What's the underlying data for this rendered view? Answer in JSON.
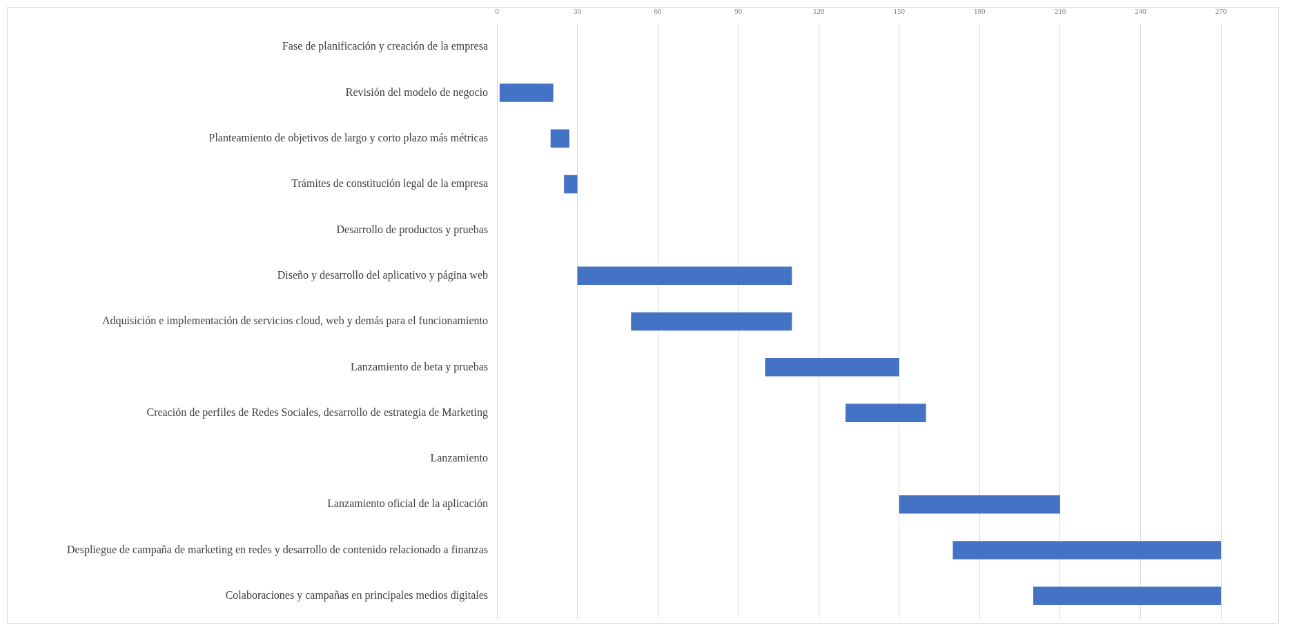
{
  "chart_data": {
    "type": "bar",
    "orientation": "horizontal",
    "categories": [
      "Fase de planificación y creación de la empresa",
      "Revisión del modelo de negocio",
      "Planteamiento de objetivos de largo y corto plazo más métricas",
      "Trámites de constitución legal de la empresa",
      "Desarrollo de productos y pruebas",
      "Diseño y desarrollo del aplicativo y página web",
      "Adquisición e implementación de servicios cloud, web y demás para el funcionamiento",
      "Lanzamiento de beta y pruebas",
      "Creación de perfiles de Redes Sociales, desarrollo de estrategia de Marketing",
      "Lanzamiento",
      "Lanzamiento oficial de la aplicación",
      "Despliegue de campaña de marketing en redes y desarrollo de contenido relacionado a finanzas",
      "Colaboraciones y campañas en principales medios digitales"
    ],
    "values": [
      null,
      20,
      7,
      5,
      null,
      80,
      60,
      50,
      30,
      null,
      60,
      100,
      70
    ],
    "base": [
      null,
      1,
      20,
      25,
      null,
      30,
      50,
      100,
      130,
      null,
      150,
      170,
      200
    ],
    "color": "#4472c4",
    "xlim": [
      0,
      270
    ],
    "xticks": [
      0,
      30,
      60,
      90,
      120,
      150,
      180,
      210,
      240,
      270
    ],
    "grid": "x",
    "legend": false
  }
}
